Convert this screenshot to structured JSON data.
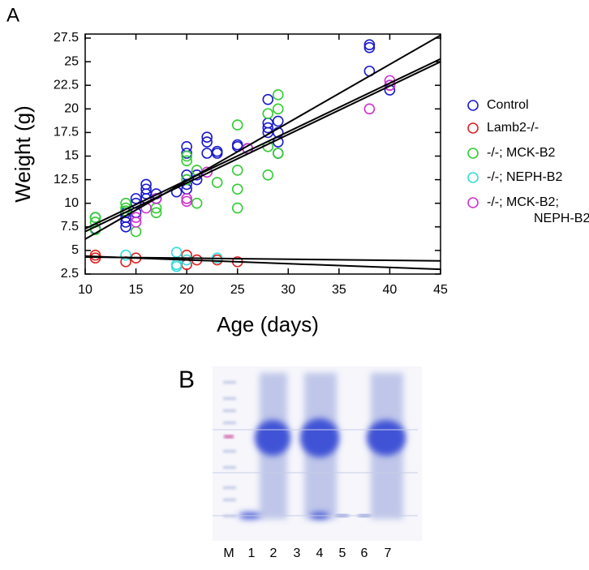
{
  "chart_data": {
    "type": "scatter",
    "panel_label": "A",
    "xlabel": "Age (days)",
    "ylabel": "Weight (g)",
    "xlim": [
      10,
      45
    ],
    "xticks": [
      10,
      15,
      20,
      25,
      30,
      35,
      40,
      45
    ],
    "ylim": [
      2.5,
      27.5
    ],
    "yticks": [
      2.5,
      5,
      7.5,
      10,
      12.5,
      15,
      17.5,
      20,
      22.5,
      25,
      27.5
    ],
    "series": [
      {
        "name": "Control",
        "color": "#1a1acc",
        "x": [
          11,
          11,
          14,
          14,
          14,
          14,
          15,
          15,
          15,
          16,
          16,
          16,
          16,
          17,
          17,
          19,
          20,
          20,
          20,
          20,
          20,
          20,
          21,
          21,
          22,
          22,
          22,
          23,
          23,
          25,
          25,
          26,
          28,
          28,
          28,
          28,
          29,
          29,
          29,
          29,
          38,
          38,
          38,
          40,
          40
        ],
        "values": [
          8.5,
          7.3,
          8.0,
          7.5,
          9.0,
          8.5,
          9.0,
          10.0,
          10.5,
          12.0,
          11.5,
          11.0,
          10.5,
          10.5,
          11.0,
          11.2,
          16.0,
          15.3,
          13.0,
          12.5,
          12.0,
          11.5,
          12.5,
          13.0,
          17.0,
          16.5,
          15.3,
          15.5,
          15.3,
          16.2,
          16.0,
          15.8,
          21.0,
          18.5,
          18.0,
          17.5,
          18.7,
          17.5,
          16.5,
          15.3,
          26.8,
          26.5,
          24.0,
          22.5,
          22.0
        ]
      },
      {
        "name": "Lamb2-/-",
        "color": "#dd2222",
        "x": [
          11,
          11,
          14,
          15,
          20,
          20,
          21,
          23,
          25
        ],
        "values": [
          4.5,
          4.2,
          3.8,
          4.2,
          4.5,
          3.5,
          4.0,
          4.0,
          3.8
        ]
      },
      {
        "name": "-/-; MCK-B2",
        "color": "#33cc33",
        "x": [
          11,
          11,
          11,
          14,
          14,
          14,
          15,
          17,
          17,
          20,
          20,
          20,
          21,
          21,
          23,
          25,
          25,
          25,
          25,
          28,
          28,
          28,
          29,
          29,
          29
        ],
        "values": [
          8.5,
          8.0,
          7.2,
          10.0,
          9.5,
          9.2,
          7.0,
          9.5,
          9.0,
          15.0,
          14.5,
          12.5,
          13.5,
          10.0,
          12.2,
          18.3,
          13.5,
          11.5,
          9.5,
          19.5,
          16.0,
          13.0,
          21.5,
          20.0,
          15.3
        ]
      },
      {
        "name": "-/-; NEPH-B2",
        "color": "#33dddd",
        "x": [
          14,
          19,
          19,
          19,
          20,
          23
        ],
        "values": [
          4.5,
          4.8,
          3.5,
          3.3,
          4.0,
          4.2
        ]
      },
      {
        "name": "-/-; MCK-B2; NEPH-B2",
        "color": "#cc33cc",
        "x": [
          15,
          15,
          16,
          17,
          20,
          20,
          22,
          26,
          38,
          40,
          40
        ],
        "values": [
          8.5,
          8.0,
          9.5,
          10.5,
          10.5,
          10.2,
          13.3,
          15.8,
          20.0,
          23.0,
          22.5
        ]
      }
    ],
    "fit_lines": [
      {
        "x": [
          10,
          45
        ],
        "values": [
          6.2,
          27.8
        ]
      },
      {
        "x": [
          10,
          45
        ],
        "values": [
          7.3,
          25.3
        ]
      },
      {
        "x": [
          10,
          45
        ],
        "values": [
          7.0,
          25.0
        ]
      },
      {
        "x": [
          10,
          45
        ],
        "values": [
          4.4,
          3.0
        ]
      },
      {
        "x": [
          10,
          45
        ],
        "values": [
          4.3,
          3.9
        ]
      }
    ]
  },
  "gel": {
    "panel_label": "B",
    "lanes": [
      "M",
      "1",
      "2",
      "3",
      "4",
      "5",
      "6",
      "7"
    ]
  }
}
